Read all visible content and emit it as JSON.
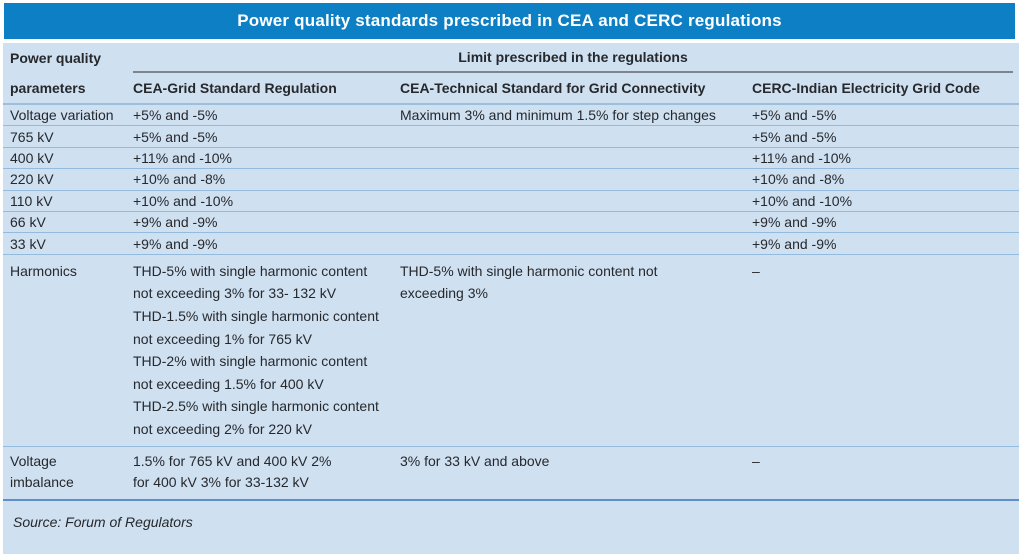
{
  "title": "Power quality standards prescribed in CEA and CERC regulations",
  "header": {
    "param_line1": "Power quality",
    "param_line2": "parameters",
    "limit_header": "Limit prescribed in the regulations",
    "columns": [
      "CEA-Grid Standard Regulation",
      "CEA-Technical Standard for Grid Connectivity",
      "CERC-Indian Electricity Grid Code"
    ]
  },
  "rows": [
    {
      "param": "Voltage variation",
      "cea_grid": "+5% and -5%",
      "cea_tech": "Maximum 3% and minimum 1.5% for step changes",
      "cerc": "+5% and -5%"
    },
    {
      "param": "765 kV",
      "cea_grid": "+5% and -5%",
      "cea_tech": "",
      "cerc": "+5% and -5%"
    },
    {
      "param": "400 kV",
      "cea_grid": "+11% and -10%",
      "cea_tech": "",
      "cerc": "+11% and -10%"
    },
    {
      "param": "220 kV",
      "cea_grid": "+10% and -8%",
      "cea_tech": "",
      "cerc": "+10% and -8%"
    },
    {
      "param": "110 kV",
      "cea_grid": "+10% and -10%",
      "cea_tech": "",
      "cerc": "+10% and -10%"
    },
    {
      "param": "66 kV",
      "cea_grid": "+9% and -9%",
      "cea_tech": "",
      "cerc": "+9% and -9%"
    },
    {
      "param": "33 kV",
      "cea_grid": "+9% and -9%",
      "cea_tech": "",
      "cerc": "+9% and -9%"
    },
    {
      "param": "Harmonics",
      "cea_grid": "THD-5% with single harmonic content\nnot exceeding 3% for 33- 132 kV\nTHD-1.5% with single harmonic content\nnot exceeding 1% for 765 kV\nTHD-2% with single harmonic content\nnot exceeding 1.5% for 400 kV\nTHD-2.5% with single harmonic content\nnot exceeding 2% for 220 kV",
      "cea_tech": "THD-5% with single harmonic content not\nexceeding 3%",
      "cerc": "–"
    },
    {
      "param": "Voltage\nimbalance",
      "cea_grid": "1.5% for 765 kV and 400 kV 2%\nfor 400 kV 3% for 33-132 kV",
      "cea_tech": "3% for 33 kV and above",
      "cerc": "–"
    }
  ],
  "source": "Source: Forum of Regulators",
  "colors": {
    "title_bar": "#0c7fc5",
    "table_bg": "#cfe0f1",
    "row_sep": "#94bbdd",
    "rule_gray": "#7d848c",
    "rule_blue": "#9dbfdd",
    "rule_bottom": "#5c90c6",
    "text": "#26282c",
    "title_text": "#ffffff"
  }
}
